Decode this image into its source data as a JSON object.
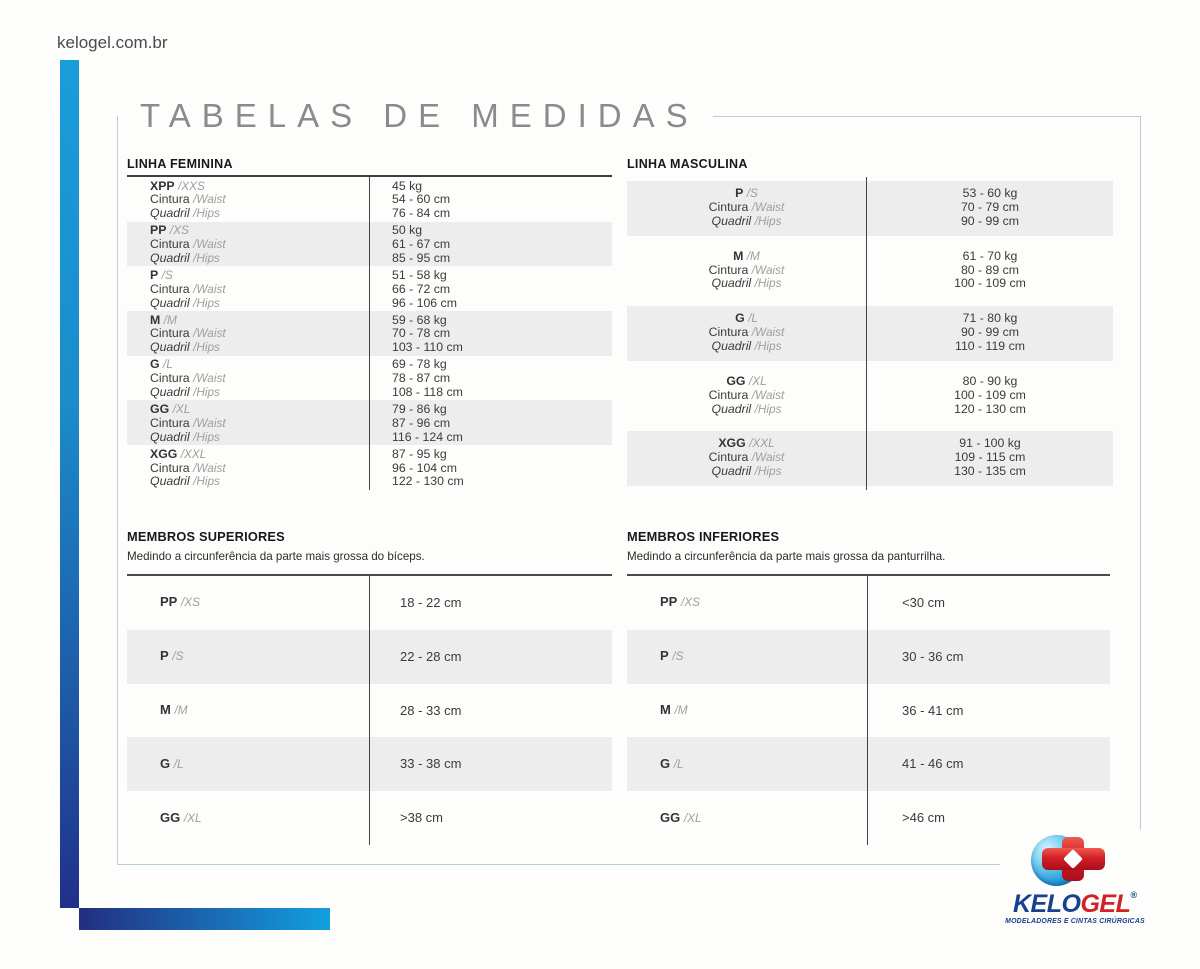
{
  "header": {
    "site_url": "kelogel.com.br"
  },
  "title": "TABELAS DE MEDIDAS",
  "shared_labels": {
    "cintura": "Cintura",
    "waist": "/Waist",
    "quadril": "Quadril",
    "hips": "/Hips"
  },
  "linha_feminina": {
    "title": "LINHA FEMININA",
    "rows": [
      {
        "size": "XPP",
        "size_alt": "/XXS",
        "weight": "45 kg",
        "waist_cm": "54 - 60 cm",
        "hips_cm": "76 - 84 cm"
      },
      {
        "size": "PP",
        "size_alt": "/XS",
        "weight": "50 kg",
        "waist_cm": "61 - 67 cm",
        "hips_cm": "85 - 95 cm"
      },
      {
        "size": "P",
        "size_alt": "/S",
        "weight": "51 - 58 kg",
        "waist_cm": "66 - 72 cm",
        "hips_cm": "96 - 106 cm"
      },
      {
        "size": "M",
        "size_alt": "/M",
        "weight": "59 - 68 kg",
        "waist_cm": "70 - 78 cm",
        "hips_cm": "103 - 110 cm"
      },
      {
        "size": "G",
        "size_alt": "/L",
        "weight": "69 - 78 kg",
        "waist_cm": "78 - 87 cm",
        "hips_cm": "108 - 118 cm"
      },
      {
        "size": "GG",
        "size_alt": "/XL",
        "weight": "79 - 86 kg",
        "waist_cm": "87 - 96 cm",
        "hips_cm": "116 - 124 cm"
      },
      {
        "size": "XGG",
        "size_alt": "/XXL",
        "weight": "87 - 95 kg",
        "waist_cm": "96 - 104 cm",
        "hips_cm": "122 - 130 cm"
      }
    ]
  },
  "linha_masculina": {
    "title": "LINHA MASCULINA",
    "rows": [
      {
        "size": "P",
        "size_alt": "/S",
        "weight": "53 - 60 kg",
        "waist_cm": "70 - 79 cm",
        "hips_cm": "90 - 99 cm"
      },
      {
        "size": "M",
        "size_alt": "/M",
        "weight": "61 - 70 kg",
        "waist_cm": "80 - 89 cm",
        "hips_cm": "100 - 109 cm"
      },
      {
        "size": "G",
        "size_alt": "/L",
        "weight": "71 - 80 kg",
        "waist_cm": "90 - 99 cm",
        "hips_cm": "110 - 119 cm"
      },
      {
        "size": "GG",
        "size_alt": "/XL",
        "weight": "80 - 90 kg",
        "waist_cm": "100 - 109 cm",
        "hips_cm": "120 - 130 cm"
      },
      {
        "size": "XGG",
        "size_alt": "/XXL",
        "weight": "91 - 100 kg",
        "waist_cm": "109 - 115 cm",
        "hips_cm": "130 - 135 cm"
      }
    ]
  },
  "membros_superiores": {
    "title": "MEMBROS SUPERIORES",
    "subtitle": "Medindo a circunferência da parte mais grossa do bíceps.",
    "rows": [
      {
        "size": "PP",
        "size_alt": "/XS",
        "value": "18 - 22 cm"
      },
      {
        "size": "P",
        "size_alt": "/S",
        "value": "22 - 28 cm"
      },
      {
        "size": "M",
        "size_alt": "/M",
        "value": "28 - 33 cm"
      },
      {
        "size": "G",
        "size_alt": "/L",
        "value": "33 - 38 cm"
      },
      {
        "size": "GG",
        "size_alt": "/XL",
        "value": ">38 cm"
      }
    ]
  },
  "membros_inferiores": {
    "title": "MEMBROS INFERIORES",
    "subtitle": "Medindo a circunferência da parte mais grossa da panturrilha.",
    "rows": [
      {
        "size": "PP",
        "size_alt": "/XS",
        "value": "<30 cm"
      },
      {
        "size": "P",
        "size_alt": "/S",
        "value": "30 - 36 cm"
      },
      {
        "size": "M",
        "size_alt": "/M",
        "value": "36 - 41 cm"
      },
      {
        "size": "G",
        "size_alt": "/L",
        "value": "41 - 46 cm"
      },
      {
        "size": "GG",
        "size_alt": "/XL",
        "value": ">46 cm"
      }
    ]
  },
  "logo": {
    "brand_part1": "KELO",
    "brand_part2": "GEL",
    "registered_mark": "®",
    "tagline": "MODELADORES E CINTAS CIRÚRGICAS",
    "cross_icon": "plus-cross-icon"
  },
  "colors": {
    "accent_blue_light": "#199dda",
    "accent_blue_dark": "#21308a",
    "frame_border": "#b7d1ce",
    "row_stripe": "#ededed",
    "brand_navy": "#16418f",
    "brand_red": "#d32127"
  }
}
